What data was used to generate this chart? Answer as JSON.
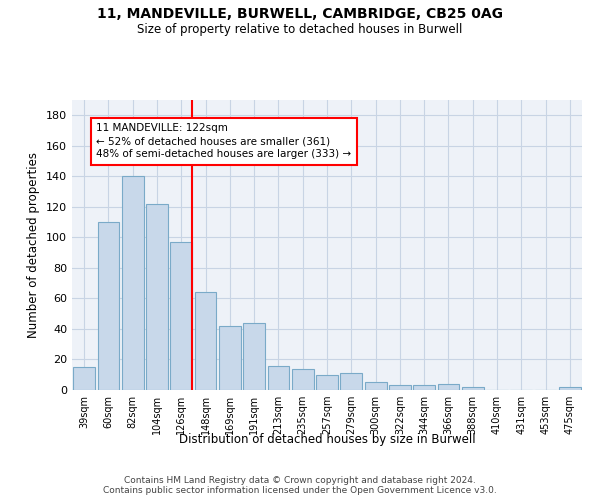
{
  "title_line1": "11, MANDEVILLE, BURWELL, CAMBRIDGE, CB25 0AG",
  "title_line2": "Size of property relative to detached houses in Burwell",
  "xlabel": "Distribution of detached houses by size in Burwell",
  "ylabel": "Number of detached properties",
  "categories": [
    "39sqm",
    "60sqm",
    "82sqm",
    "104sqm",
    "126sqm",
    "148sqm",
    "169sqm",
    "191sqm",
    "213sqm",
    "235sqm",
    "257sqm",
    "279sqm",
    "300sqm",
    "322sqm",
    "344sqm",
    "366sqm",
    "388sqm",
    "410sqm",
    "431sqm",
    "453sqm",
    "475sqm"
  ],
  "values": [
    15,
    110,
    140,
    122,
    97,
    64,
    42,
    44,
    16,
    14,
    10,
    11,
    5,
    3,
    3,
    4,
    2,
    0,
    0,
    0,
    2
  ],
  "bar_color": "#c8d8ea",
  "bar_edge_color": "#7aaac8",
  "red_line_x": 4.45,
  "annotation_line1": "11 MANDEVILLE: 122sqm",
  "annotation_line2": "← 52% of detached houses are smaller (361)",
  "annotation_line3": "48% of semi-detached houses are larger (333) →",
  "ylim": [
    0,
    190
  ],
  "yticks": [
    0,
    20,
    40,
    60,
    80,
    100,
    120,
    140,
    160,
    180
  ],
  "background_color": "#ffffff",
  "plot_bg_color": "#eef2f8",
  "grid_color": "#c8d4e4",
  "footer_line1": "Contains HM Land Registry data © Crown copyright and database right 2024.",
  "footer_line2": "Contains public sector information licensed under the Open Government Licence v3.0."
}
